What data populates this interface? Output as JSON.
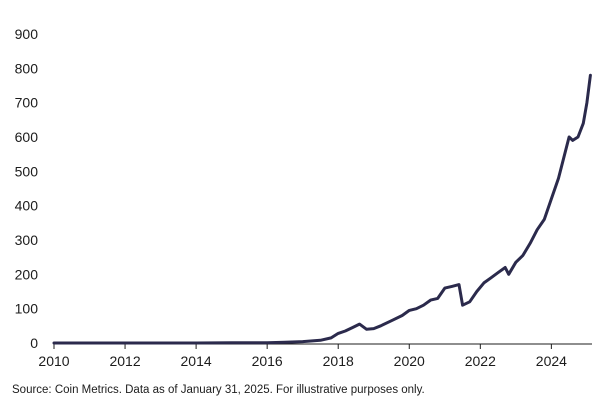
{
  "chart_data": {
    "type": "line",
    "title": "",
    "xlabel": "",
    "ylabel": "",
    "x_ticks": [
      "2010",
      "2012",
      "2014",
      "2016",
      "2018",
      "2020",
      "2022",
      "2024"
    ],
    "y_ticks": [
      "0",
      "100",
      "200",
      "300",
      "400",
      "500",
      "600",
      "700",
      "800",
      "900"
    ],
    "xlim": [
      2010,
      2025.2
    ],
    "ylim": [
      0,
      900
    ],
    "grid": false,
    "line_color": "#2b2a4c",
    "series": [
      {
        "x": [
          2010,
          2012,
          2014,
          2015,
          2016,
          2016.5,
          2017,
          2017.5,
          2017.8,
          2018,
          2018.2,
          2018.4,
          2018.6,
          2018.8,
          2019,
          2019.2,
          2019.5,
          2019.8,
          2020,
          2020.2,
          2020.4,
          2020.6,
          2020.8,
          2021,
          2021.2,
          2021.4,
          2021.5,
          2021.7,
          2021.9,
          2022.1,
          2022.3,
          2022.5,
          2022.7,
          2022.8,
          2023,
          2023.2,
          2023.4,
          2023.6,
          2023.8,
          2024,
          2024.2,
          2024.35,
          2024.5,
          2024.6,
          2024.75,
          2024.9,
          2025.0,
          2025.1
        ],
        "y": [
          0,
          0,
          0,
          0.5,
          1,
          2,
          4,
          8,
          15,
          28,
          35,
          45,
          55,
          40,
          42,
          50,
          65,
          80,
          95,
          100,
          110,
          125,
          130,
          160,
          165,
          170,
          110,
          120,
          150,
          175,
          190,
          205,
          220,
          200,
          235,
          255,
          290,
          330,
          360,
          420,
          480,
          540,
          600,
          590,
          600,
          640,
          700,
          780
        ]
      }
    ]
  },
  "footer": {
    "source_text": "Source: Coin Metrics. Data as of January 31, 2025. For illustrative purposes only."
  }
}
